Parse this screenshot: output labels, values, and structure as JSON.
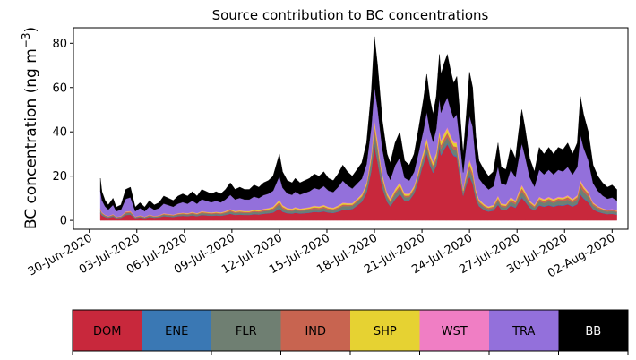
{
  "chart_data": {
    "type": "area",
    "stacked": true,
    "title": "Source contribution to BC concentrations",
    "xlabel": "",
    "ylabel": "BC concentration (ng m",
    "ylabel_exponent": "−3",
    "ylabel_close": ")",
    "ylim": [
      -4,
      87
    ],
    "yticks": [
      0,
      20,
      40,
      60,
      80
    ],
    "x_unit": "days since 30-Jun-2020",
    "xlim": [
      -1,
      34
    ],
    "data_x_range": [
      0.7,
      33.3
    ],
    "xticks": [
      {
        "x": 0,
        "label": "30-Jun-2020"
      },
      {
        "x": 3,
        "label": "03-Jul-2020"
      },
      {
        "x": 6,
        "label": "06-Jul-2020"
      },
      {
        "x": 9,
        "label": "09-Jul-2020"
      },
      {
        "x": 12,
        "label": "12-Jul-2020"
      },
      {
        "x": 15,
        "label": "15-Jul-2020"
      },
      {
        "x": 18,
        "label": "18-Jul-2020"
      },
      {
        "x": 21,
        "label": "21-Jul-2020"
      },
      {
        "x": 24,
        "label": "24-Jul-2020"
      },
      {
        "x": 27,
        "label": "27-Jul-2020"
      },
      {
        "x": 30,
        "label": "30-Jul-2020"
      },
      {
        "x": 33,
        "label": "02-Aug-2020"
      }
    ],
    "total_anchors": [
      [
        0.7,
        19
      ],
      [
        0.8,
        13
      ],
      [
        1.0,
        9
      ],
      [
        1.2,
        7
      ],
      [
        1.5,
        10
      ],
      [
        1.7,
        6
      ],
      [
        2.0,
        7
      ],
      [
        2.3,
        14
      ],
      [
        2.6,
        15
      ],
      [
        2.9,
        6
      ],
      [
        3.2,
        8
      ],
      [
        3.5,
        6
      ],
      [
        3.8,
        9
      ],
      [
        4.1,
        7
      ],
      [
        4.4,
        8
      ],
      [
        4.7,
        11
      ],
      [
        5.0,
        10
      ],
      [
        5.3,
        9
      ],
      [
        5.6,
        11
      ],
      [
        5.9,
        12
      ],
      [
        6.2,
        11
      ],
      [
        6.5,
        13
      ],
      [
        6.8,
        11
      ],
      [
        7.1,
        14
      ],
      [
        7.4,
        13
      ],
      [
        7.7,
        12
      ],
      [
        8.0,
        13
      ],
      [
        8.3,
        12
      ],
      [
        8.6,
        14
      ],
      [
        8.9,
        17
      ],
      [
        9.2,
        14
      ],
      [
        9.5,
        15
      ],
      [
        9.8,
        14
      ],
      [
        10.1,
        14
      ],
      [
        10.4,
        16
      ],
      [
        10.7,
        15
      ],
      [
        11.0,
        17
      ],
      [
        11.3,
        18
      ],
      [
        11.6,
        20
      ],
      [
        11.8,
        25
      ],
      [
        12.0,
        30
      ],
      [
        12.2,
        22
      ],
      [
        12.5,
        18
      ],
      [
        12.8,
        17
      ],
      [
        13.0,
        19
      ],
      [
        13.3,
        17
      ],
      [
        13.6,
        18
      ],
      [
        13.9,
        19
      ],
      [
        14.2,
        21
      ],
      [
        14.5,
        20
      ],
      [
        14.8,
        22
      ],
      [
        15.1,
        19
      ],
      [
        15.4,
        18
      ],
      [
        15.7,
        21
      ],
      [
        16.0,
        25
      ],
      [
        16.3,
        22
      ],
      [
        16.6,
        20
      ],
      [
        16.9,
        23
      ],
      [
        17.2,
        26
      ],
      [
        17.5,
        35
      ],
      [
        17.8,
        58
      ],
      [
        18.0,
        83
      ],
      [
        18.2,
        70
      ],
      [
        18.5,
        45
      ],
      [
        18.8,
        30
      ],
      [
        19.0,
        26
      ],
      [
        19.3,
        35
      ],
      [
        19.6,
        40
      ],
      [
        19.9,
        27
      ],
      [
        20.2,
        25
      ],
      [
        20.5,
        30
      ],
      [
        20.8,
        42
      ],
      [
        21.1,
        55
      ],
      [
        21.3,
        66
      ],
      [
        21.5,
        55
      ],
      [
        21.7,
        48
      ],
      [
        21.9,
        56
      ],
      [
        22.1,
        75
      ],
      [
        22.2,
        66
      ],
      [
        22.4,
        71
      ],
      [
        22.6,
        75
      ],
      [
        22.8,
        68
      ],
      [
        23.0,
        62
      ],
      [
        23.2,
        65
      ],
      [
        23.4,
        48
      ],
      [
        23.6,
        30
      ],
      [
        23.8,
        48
      ],
      [
        24.0,
        67
      ],
      [
        24.2,
        60
      ],
      [
        24.4,
        38
      ],
      [
        24.6,
        27
      ],
      [
        24.9,
        23
      ],
      [
        25.2,
        20
      ],
      [
        25.5,
        22
      ],
      [
        25.8,
        35
      ],
      [
        26.0,
        24
      ],
      [
        26.3,
        23
      ],
      [
        26.6,
        33
      ],
      [
        26.9,
        28
      ],
      [
        27.1,
        40
      ],
      [
        27.3,
        50
      ],
      [
        27.5,
        42
      ],
      [
        27.8,
        28
      ],
      [
        28.1,
        22
      ],
      [
        28.4,
        33
      ],
      [
        28.7,
        30
      ],
      [
        29.0,
        33
      ],
      [
        29.3,
        30
      ],
      [
        29.6,
        33
      ],
      [
        29.9,
        32
      ],
      [
        30.2,
        35
      ],
      [
        30.5,
        30
      ],
      [
        30.8,
        35
      ],
      [
        31.0,
        56
      ],
      [
        31.2,
        48
      ],
      [
        31.5,
        40
      ],
      [
        31.8,
        25
      ],
      [
        32.1,
        20
      ],
      [
        32.4,
        17
      ],
      [
        32.7,
        15
      ],
      [
        33.0,
        16
      ],
      [
        33.3,
        14
      ]
    ],
    "series_fraction_anchors": [
      {
        "name": "DOM",
        "color": "#c8283c",
        "fractions": [
          [
            0,
            0.17
          ],
          [
            12,
            0.16
          ],
          [
            16,
            0.2
          ],
          [
            18,
            0.45
          ],
          [
            19,
            0.25
          ],
          [
            20,
            0.35
          ],
          [
            21,
            0.55
          ],
          [
            22,
            0.5
          ],
          [
            23,
            0.55
          ],
          [
            24,
            0.3
          ],
          [
            25,
            0.2
          ],
          [
            31,
            0.2
          ],
          [
            33.3,
            0.15
          ]
        ]
      },
      {
        "name": "ENE",
        "color": "#3a78b4",
        "fractions": [
          [
            0,
            0.01
          ],
          [
            33.3,
            0.01
          ]
        ]
      },
      {
        "name": "FLR",
        "color": "#6f7f72",
        "fractions": [
          [
            0,
            0.05
          ],
          [
            12,
            0.05
          ],
          [
            18,
            0.07
          ],
          [
            22,
            0.04
          ],
          [
            31,
            0.05
          ],
          [
            33.3,
            0.06
          ]
        ]
      },
      {
        "name": "IND",
        "color": "#c86450",
        "fractions": [
          [
            0,
            0.03
          ],
          [
            33.3,
            0.03
          ]
        ]
      },
      {
        "name": "SHP",
        "color": "#e6d232",
        "fractions": [
          [
            0,
            0.01
          ],
          [
            18,
            0.03
          ],
          [
            22,
            0.03
          ],
          [
            33.3,
            0.01
          ]
        ]
      },
      {
        "name": "WST",
        "color": "#f07ec4",
        "fractions": [
          [
            0,
            0.01
          ],
          [
            33.3,
            0.01
          ]
        ]
      },
      {
        "name": "TRA",
        "color": "#9370db",
        "fractions": [
          [
            0,
            0.42
          ],
          [
            12,
            0.32
          ],
          [
            16,
            0.42
          ],
          [
            18,
            0.2
          ],
          [
            19,
            0.33
          ],
          [
            21,
            0.2
          ],
          [
            22,
            0.22
          ],
          [
            23,
            0.2
          ],
          [
            24,
            0.3
          ],
          [
            25,
            0.38
          ],
          [
            31,
            0.35
          ],
          [
            33.3,
            0.26
          ]
        ]
      },
      {
        "name": "BB",
        "color": "#000000",
        "fractions": [
          [
            0,
            0.3
          ],
          [
            33.3,
            0.3
          ]
        ]
      }
    ],
    "legend": {
      "placement": "bottom",
      "entries": [
        {
          "label": "DOM",
          "color": "#c8283c",
          "text_color": "#000000"
        },
        {
          "label": "ENE",
          "color": "#3a78b4",
          "text_color": "#000000"
        },
        {
          "label": "FLR",
          "color": "#6f7f72",
          "text_color": "#000000"
        },
        {
          "label": "IND",
          "color": "#c86450",
          "text_color": "#000000"
        },
        {
          "label": "SHP",
          "color": "#e6d232",
          "text_color": "#000000"
        },
        {
          "label": "WST",
          "color": "#f07ec4",
          "text_color": "#000000"
        },
        {
          "label": "TRA",
          "color": "#9370db",
          "text_color": "#000000"
        },
        {
          "label": "BB",
          "color": "#000000",
          "text_color": "#ffffff"
        }
      ]
    },
    "grid": false
  }
}
